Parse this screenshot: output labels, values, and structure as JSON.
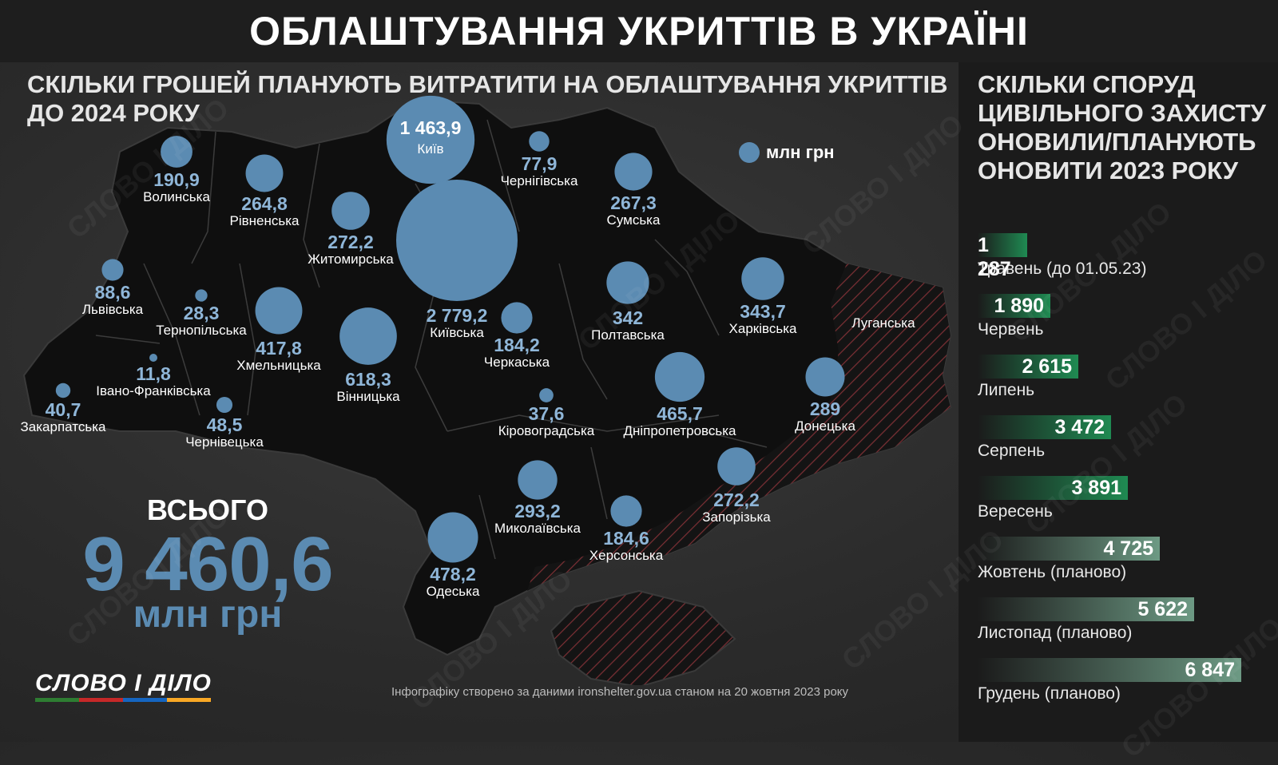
{
  "header": {
    "title": "ОБЛАШТУВАННЯ УКРИТТІВ В УКРАЇНІ"
  },
  "map_section": {
    "subtitle": "СКІЛЬКИ ГРОШЕЙ ПЛАНУЮТЬ ВИТРАТИТИ НА ОБЛАШТУВАННЯ УКРИТТІВ ДО 2024 РОКУ",
    "legend": "млн грн",
    "legend_color": "#5b8bb2",
    "regions": [
      {
        "name": "Київ",
        "value": "1 463,9"
      },
      {
        "name": "Київська",
        "value": "2 779,2"
      },
      {
        "name": "Волинська",
        "value": "190,9"
      },
      {
        "name": "Рівненська",
        "value": "264,8"
      },
      {
        "name": "Житомирська",
        "value": "272,2"
      },
      {
        "name": "Чернігівська",
        "value": "77,9"
      },
      {
        "name": "Сумська",
        "value": "267,3"
      },
      {
        "name": "Львівська",
        "value": "88,6"
      },
      {
        "name": "Тернопільська",
        "value": "28,3"
      },
      {
        "name": "Хмельницька",
        "value": "417,8"
      },
      {
        "name": "Вінницька",
        "value": "618,3"
      },
      {
        "name": "Черкаська",
        "value": "184,2"
      },
      {
        "name": "Полтавська",
        "value": "342"
      },
      {
        "name": "Харківська",
        "value": "343,7"
      },
      {
        "name": "Луганська",
        "value": ""
      },
      {
        "name": "Івано-Франківська",
        "value": "11,8"
      },
      {
        "name": "Закарпатська",
        "value": "40,7"
      },
      {
        "name": "Чернівецька",
        "value": "48,5"
      },
      {
        "name": "Кіровоградська",
        "value": "37,6"
      },
      {
        "name": "Дніпропетровська",
        "value": "465,7"
      },
      {
        "name": "Донецька",
        "value": "289"
      },
      {
        "name": "Миколаївська",
        "value": "293,2"
      },
      {
        "name": "Херсонська",
        "value": "184,6"
      },
      {
        "name": "Запорізька",
        "value": "272,2"
      },
      {
        "name": "Одеська",
        "value": "478,2"
      }
    ],
    "total": {
      "label": "ВСЬОГО",
      "value": "9 460,6",
      "unit": "млн грн"
    },
    "source": "Інфографіку створено за даними ironshelter.gov.ua станом на 20 жовтня 2023 року"
  },
  "side_panel": {
    "title": "СКІЛЬКИ СПОРУД ЦИВІЛЬНОГО ЗАХИСТУ ОНОВИЛИ/ПЛАНУЮТЬ ОНОВИТИ 2023 РОКУ",
    "actual_color": "#1f8a52",
    "planned_color": "#6d9a84",
    "months": [
      {
        "label": "Травень (до 01.05.23)",
        "value": "1 287",
        "amount": 1287,
        "planned": false
      },
      {
        "label": "Червень",
        "value": "1 890",
        "amount": 1890,
        "planned": false
      },
      {
        "label": "Липень",
        "value": "2 615",
        "amount": 2615,
        "planned": false
      },
      {
        "label": "Серпень",
        "value": "3 472",
        "amount": 3472,
        "planned": false
      },
      {
        "label": "Вересень",
        "value": "3 891",
        "amount": 3891,
        "planned": false
      },
      {
        "label": "Жовтень (планово)",
        "value": "4 725",
        "amount": 4725,
        "planned": true
      },
      {
        "label": "Листопад (планово)",
        "value": "5 622",
        "amount": 5622,
        "planned": true
      },
      {
        "label": "Грудень (планово)",
        "value": "6 847",
        "amount": 6847,
        "planned": true
      }
    ]
  },
  "logo": {
    "text": "СЛОВО І ДІЛО",
    "stripe_colors": [
      "#2e7d32",
      "#c62828",
      "#1565c0",
      "#f9a825"
    ]
  },
  "watermark": "СЛОВО І ДІЛО"
}
